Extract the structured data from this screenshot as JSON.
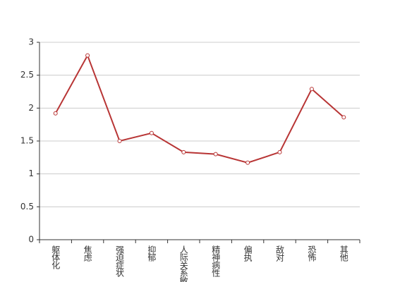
{
  "chart_data": {
    "type": "line",
    "categories": [
      "躯体化",
      "焦虑",
      "强迫症状",
      "抑郁",
      "人际关系敏感",
      "精神病性",
      "偏执",
      "敌对",
      "恐怖",
      "其他"
    ],
    "values": [
      1.92,
      2.8,
      1.5,
      1.62,
      1.33,
      1.3,
      1.17,
      1.33,
      2.29,
      1.86
    ],
    "color": "#b83535",
    "ylim": [
      0,
      3
    ],
    "yticks": [
      0,
      0.5,
      1,
      1.5,
      2,
      2.5,
      3
    ],
    "grid": true
  }
}
